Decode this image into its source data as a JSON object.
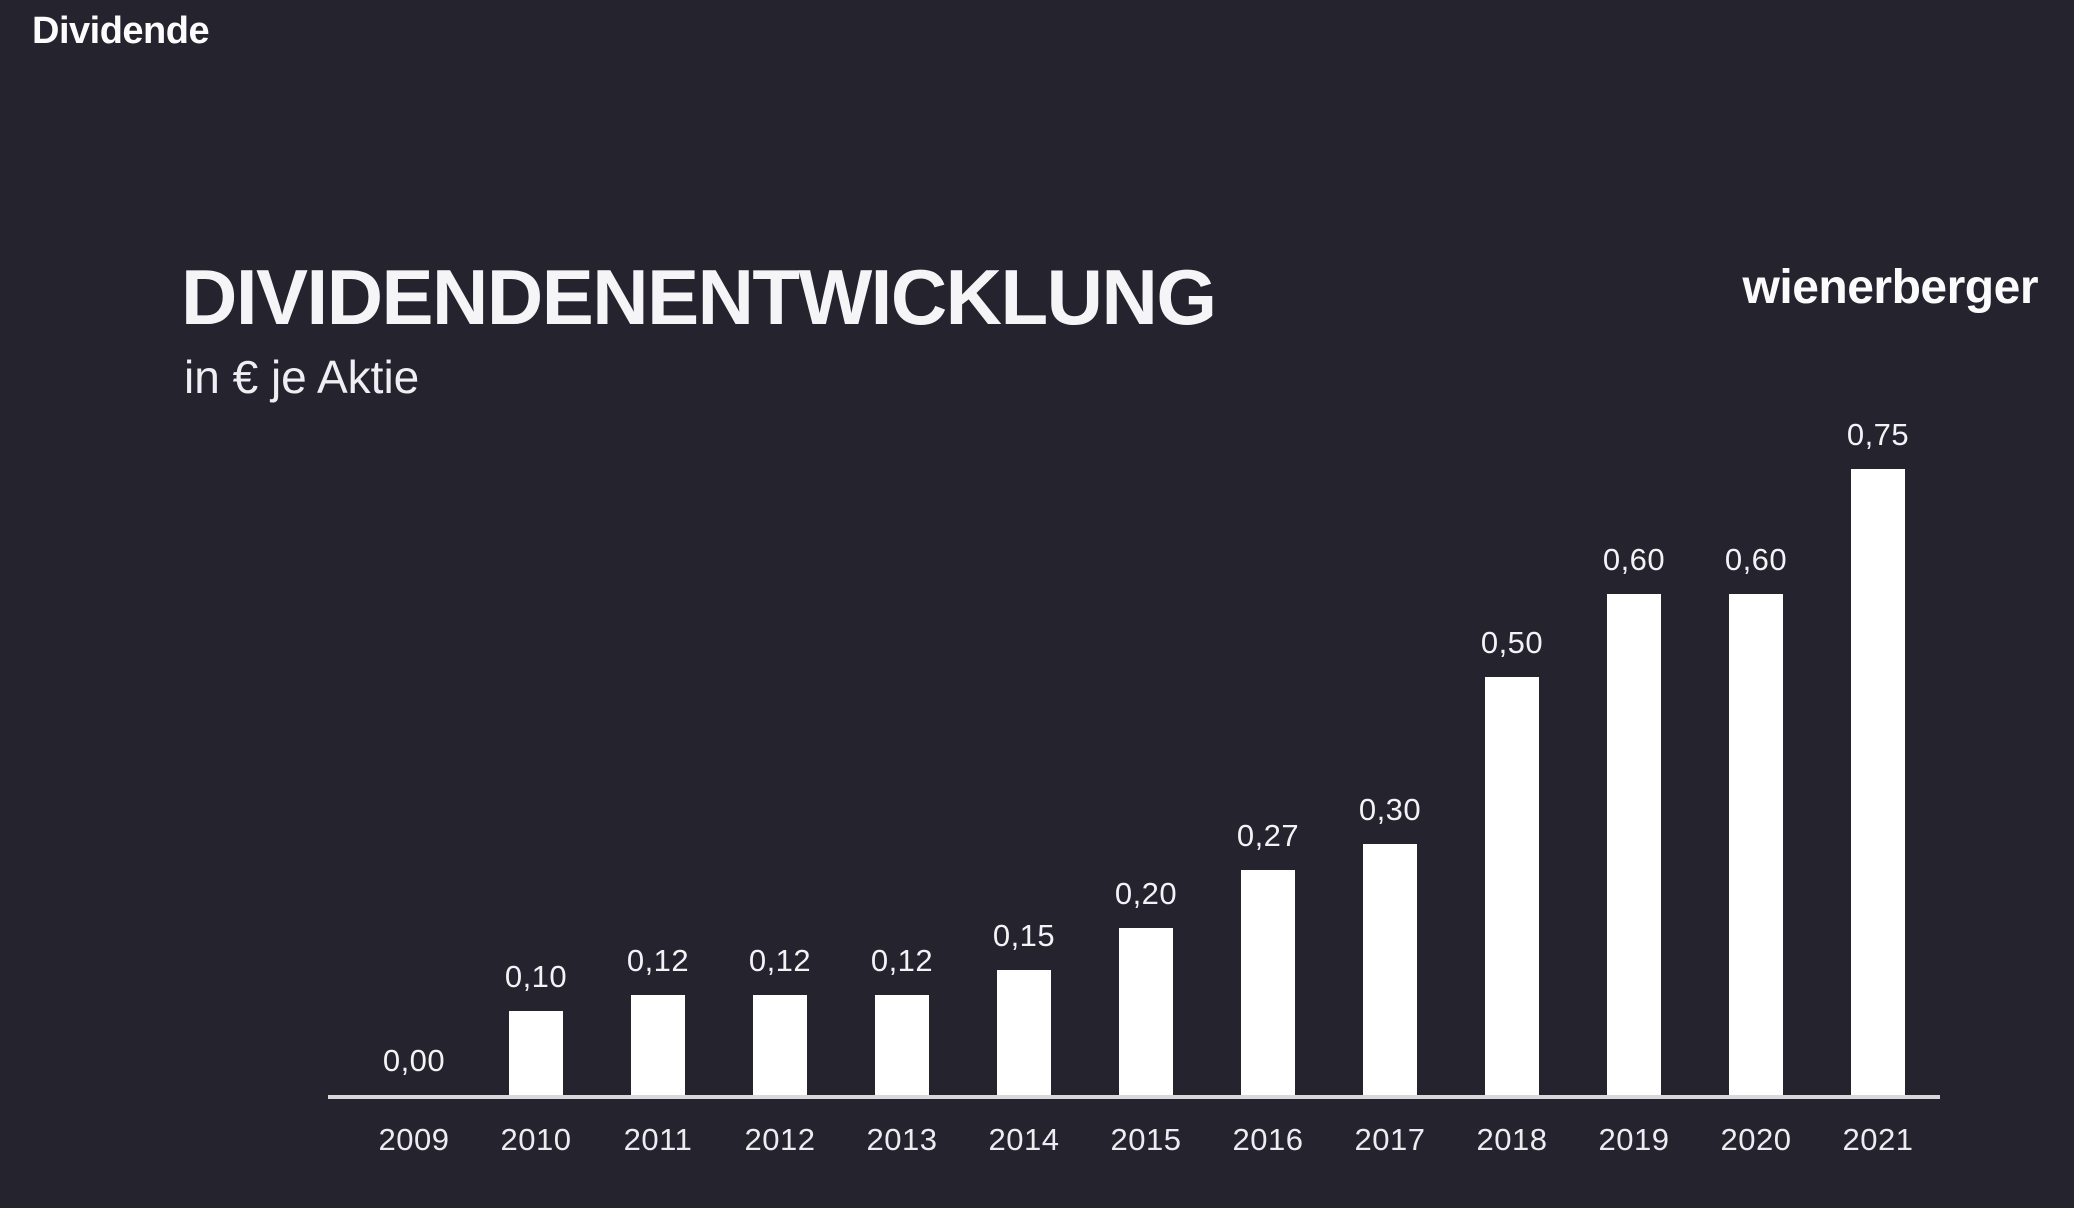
{
  "page": {
    "slide_label": "Dividende",
    "logo_text": "wienerberger",
    "background_color": "#25232e"
  },
  "header": {
    "title": "DIVIDENDENENTWICKLUNG",
    "subtitle": "in € je Aktie"
  },
  "chart_data": {
    "type": "bar",
    "title": "DIVIDENDENENTWICKLUNG",
    "subtitle": "in € je Aktie",
    "ylabel": "Dividende in € je Aktie",
    "xlabel": "",
    "categories": [
      "2009",
      "2010",
      "2011",
      "2012",
      "2013",
      "2014",
      "2015",
      "2016",
      "2017",
      "2018",
      "2019",
      "2020",
      "2021"
    ],
    "values": [
      0.0,
      0.1,
      0.12,
      0.12,
      0.12,
      0.15,
      0.2,
      0.27,
      0.3,
      0.5,
      0.6,
      0.6,
      0.75
    ],
    "value_labels": [
      "0,00",
      "0,10",
      "0,12",
      "0,12",
      "0,12",
      "0,15",
      "0,20",
      "0,27",
      "0,30",
      "0,50",
      "0,60",
      "0,60",
      "0,75"
    ],
    "ylim": [
      0,
      0.8
    ],
    "grid": false,
    "legend": false,
    "bar_color": "#ffffff",
    "axis_line_color": "#d8d7da",
    "label_color": "#f3f2f5",
    "background_color": "#25232e"
  }
}
